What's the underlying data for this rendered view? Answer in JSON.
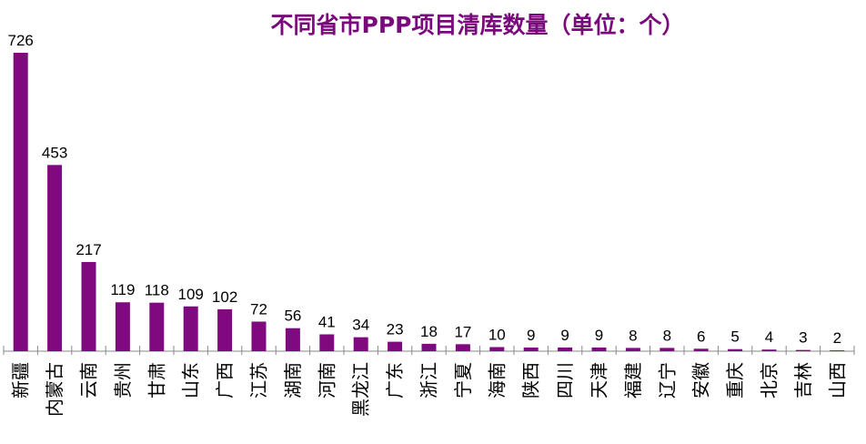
{
  "chart_data": {
    "type": "bar",
    "title": "不同省市PPP项目清库数量（单位：个）",
    "categories": [
      "新疆",
      "内蒙古",
      "云南",
      "贵州",
      "甘肃",
      "山东",
      "广西",
      "江苏",
      "湖南",
      "河南",
      "黑龙江",
      "广东",
      "浙江",
      "宁夏",
      "海南",
      "陕西",
      "四川",
      "天津",
      "福建",
      "辽宁",
      "安徽",
      "重庆",
      "北京",
      "吉林",
      "山西"
    ],
    "values": [
      726,
      453,
      217,
      119,
      118,
      109,
      102,
      72,
      56,
      41,
      34,
      23,
      18,
      17,
      10,
      9,
      9,
      9,
      8,
      8,
      6,
      5,
      4,
      3,
      2
    ],
    "xlabel": "",
    "ylabel": "",
    "ylim": [
      0,
      726
    ],
    "bar_color": "#7f0a7f",
    "grid": false,
    "legend": "none"
  }
}
